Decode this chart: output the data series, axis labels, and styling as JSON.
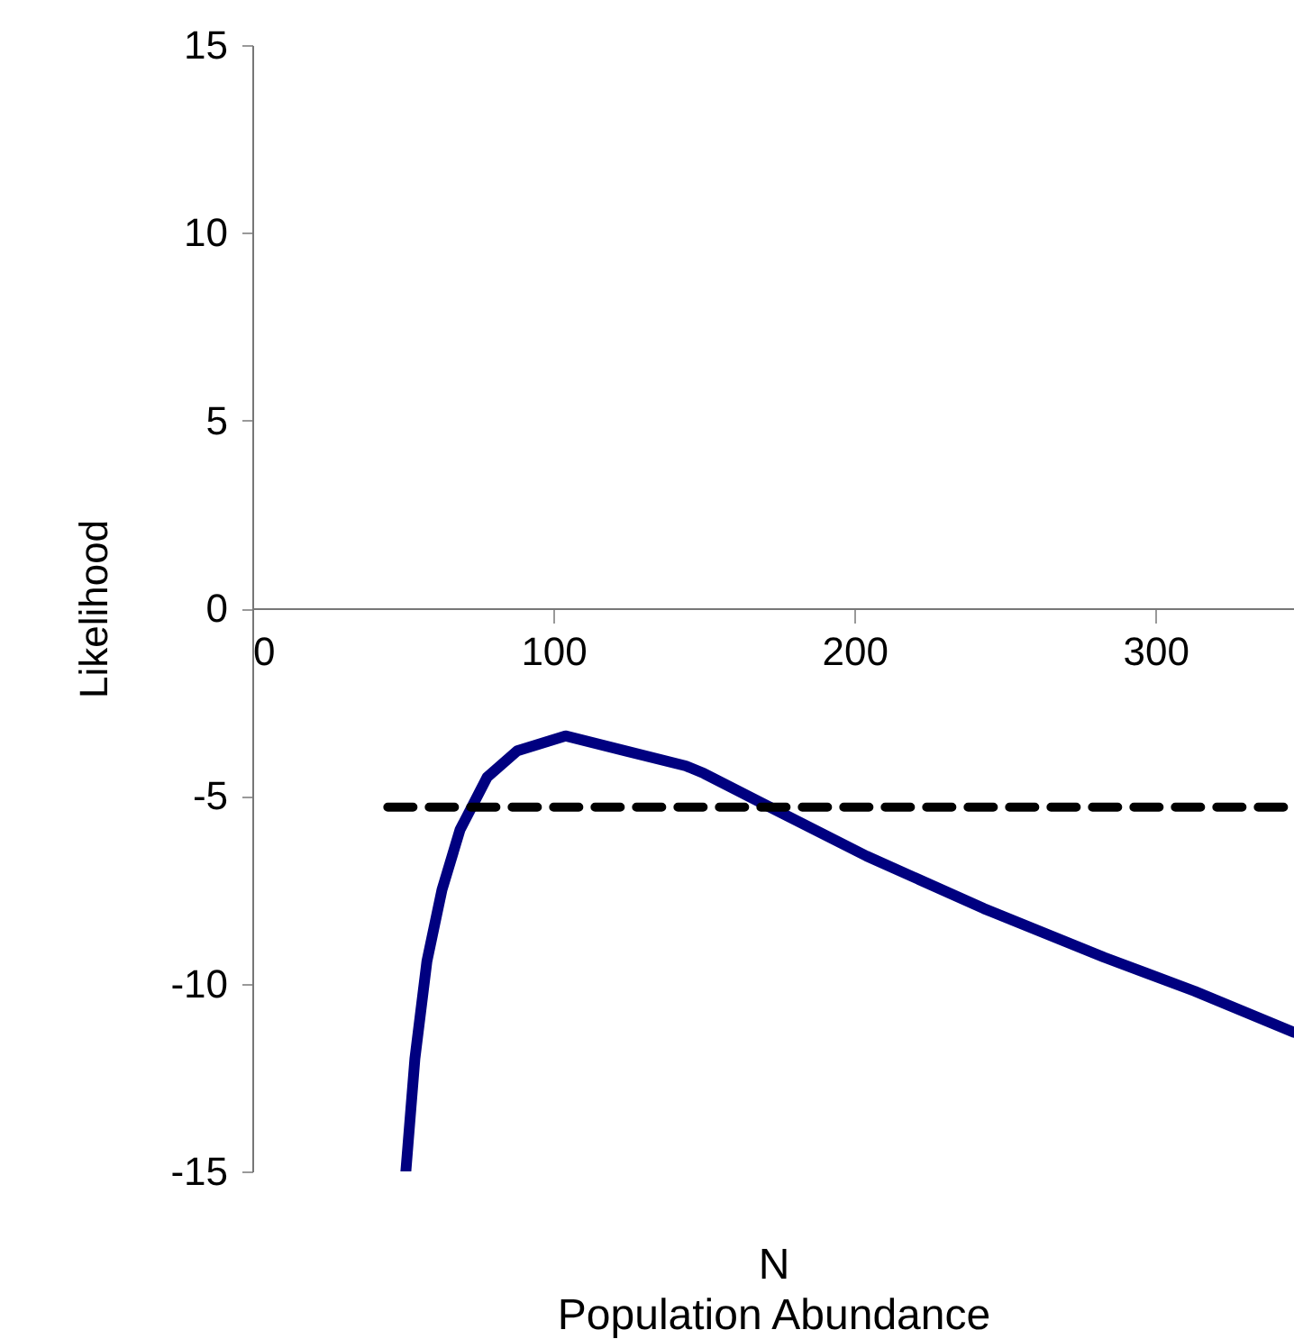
{
  "chart_data": {
    "type": "line",
    "xlabel": "N\nPopulation Abundance",
    "ylabel": "Likelihood",
    "xlim": [
      0,
      346
    ],
    "ylim": [
      -15,
      15
    ],
    "xticks": [
      0,
      100,
      200,
      300
    ],
    "yticks": [
      -15,
      -10,
      -5,
      0,
      5,
      10,
      15
    ],
    "series": [
      {
        "color": "#000080",
        "line_style": "solid",
        "x": [
          51,
          54,
          58,
          63,
          69,
          78,
          88,
          104,
          124,
          144,
          150,
          172,
          204,
          243,
          283,
          313,
          346
        ],
        "values": [
          -15,
          -12,
          -9.4,
          -7.5,
          -5.9,
          -4.5,
          -3.8,
          -3.4,
          -3.8,
          -4.2,
          -4.4,
          -5.3,
          -6.6,
          -8.0,
          -9.3,
          -10.2,
          -11.3
        ]
      },
      {
        "color": "#000000",
        "line_style": "dashed",
        "x": [
          45,
          346
        ],
        "values": [
          -5.3,
          -5.3
        ]
      }
    ],
    "grid": false,
    "marker": "none"
  }
}
